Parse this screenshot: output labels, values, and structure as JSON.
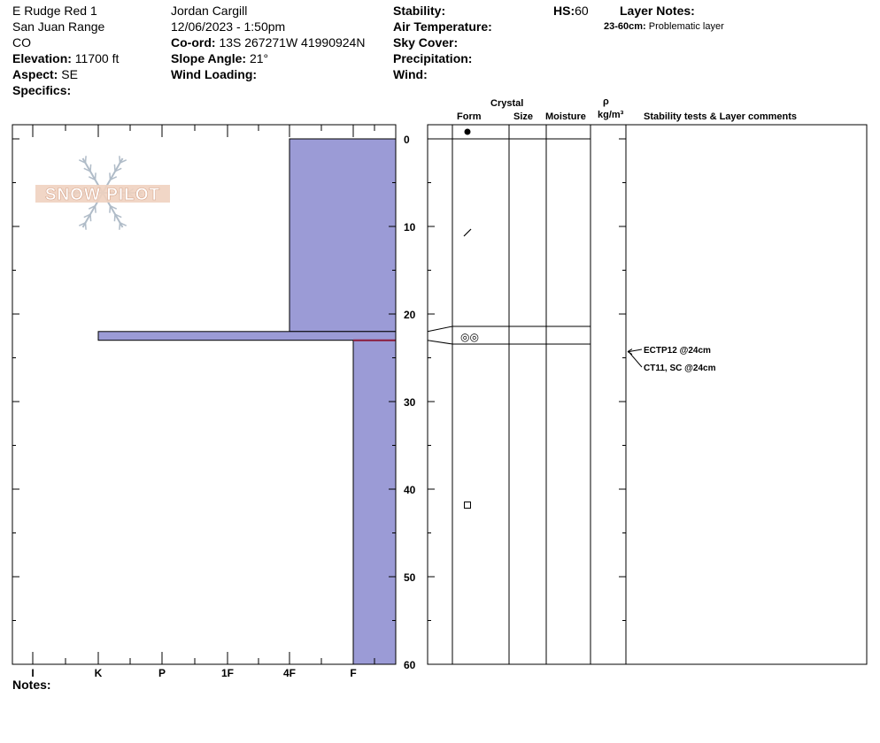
{
  "header": {
    "location": "E Rudge Red 1",
    "range": "San Juan Range",
    "state": "CO",
    "elevation_label": "Elevation:",
    "elevation": "11700 ft",
    "aspect_label": "Aspect:",
    "aspect": "SE",
    "specifics_label": "Specifics:",
    "observer": "Jordan Cargill",
    "datetime": "12/06/2023 - 1:50pm",
    "coord_label": "Co-ord:",
    "coord": "13S 267271W 41990924N",
    "slope_label": "Slope Angle:",
    "slope": "21°",
    "wind_loading_label": "Wind Loading:",
    "stability_label": "Stability:",
    "air_temp_label": "Air Temperature:",
    "sky_label": "Sky Cover:",
    "precip_label": "Precipitation:",
    "wind_label": "Wind:",
    "hs_label": "HS:",
    "hs": "60",
    "layer_notes_label": "Layer Notes:",
    "layer_note_range": "23-60cm:",
    "layer_note_text": "Problematic layer"
  },
  "logo_text": "SNOW PILOT",
  "columns": {
    "crystal": "Crystal",
    "form": "Form",
    "size": "Size",
    "moisture": "Moisture",
    "rho": "ρ",
    "density_unit": "kg/m³",
    "comments": "Stability tests & Layer comments"
  },
  "notes_label": "Notes:",
  "colors": {
    "hardness_fill": "#9b9bd6",
    "outline": "#000000",
    "weak_layer": "#8b1a3a"
  },
  "chart_data": {
    "type": "snow-profile",
    "x_axis": {
      "categories": [
        "I",
        "K",
        "P",
        "1F",
        "4F",
        "F"
      ]
    },
    "y_axis": {
      "ticks": [
        0,
        10,
        20,
        30,
        40,
        50,
        60
      ],
      "range": [
        0,
        60
      ]
    },
    "hardness_layers": [
      {
        "top": 0,
        "bottom": 22,
        "hardness": "4F"
      },
      {
        "top": 22,
        "bottom": 23,
        "hardness": "K"
      },
      {
        "top": 23,
        "bottom": 60,
        "hardness": "F"
      }
    ],
    "weak_layer_depth": 23,
    "crystal_forms": [
      {
        "depth": -1,
        "symbol": "●"
      },
      {
        "depth": 11,
        "symbol": "/"
      },
      {
        "depth": 22.5,
        "symbol": "◎◎"
      },
      {
        "depth": 42,
        "symbol": "□"
      }
    ],
    "layer_boundaries": [
      0,
      22,
      23
    ],
    "stability_tests": [
      {
        "text": "ECTP12 @24cm",
        "depth": 24
      },
      {
        "text": "CT11, SC @24cm",
        "depth": 24
      }
    ]
  }
}
